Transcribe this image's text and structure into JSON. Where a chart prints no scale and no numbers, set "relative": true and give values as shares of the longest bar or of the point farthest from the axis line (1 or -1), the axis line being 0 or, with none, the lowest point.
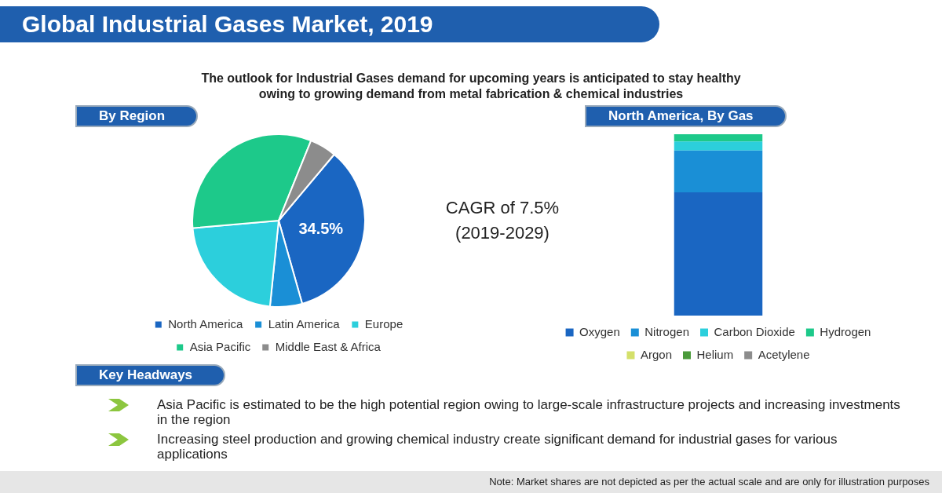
{
  "chart_data": [
    {
      "type": "pie",
      "title": "Global Industrial Gases Market, 2019",
      "subtitle": "The outlook for Industrial Gases demand for upcoming years is anticipated to stay healthy owing to growing demand from metal fabrication & chemical industries",
      "categories": [
        "North America",
        "Latin America",
        "Europe",
        "Asia Pacific",
        "Middle East & Africa"
      ],
      "values": [
        34.5,
        6,
        22,
        32.5,
        5
      ],
      "colors": [
        "#1a66c2",
        "#1a8fd6",
        "#2ccfdc",
        "#1dc98a",
        "#8c8c8c"
      ],
      "value_labels": [
        "34.5%",
        null,
        null,
        null,
        null
      ],
      "legend": "bottom",
      "annotations": [
        "By Region",
        "CAGR of 7.5%",
        "(2019-2029)",
        "Key Headways",
        "Asia Pacific is estimated to be the high potential region owing to large-scale infrastructure projects and increasing investments in the region",
        "Increasing steel production and growing chemical industry create significant demand for industrial gases for various applications",
        "Note: Market shares are not depicted as per the actual scale and are only for illustration purposes"
      ]
    },
    {
      "type": "bar",
      "title": "North America, By Gas",
      "categories": [
        null
      ],
      "stacked": true,
      "relative": true,
      "legend": "bottom",
      "series": [
        {
          "name": "Oxygen",
          "color": "#1a66c2",
          "values": [
            0.68
          ]
        },
        {
          "name": "Nitrogen",
          "color": "#1a8fd6",
          "values": [
            0.23
          ]
        },
        {
          "name": "Carbon Dioxide",
          "color": "#2ccfdc",
          "values": [
            0.05
          ]
        },
        {
          "name": "Hydrogen",
          "color": "#1dc98a",
          "values": [
            0.04
          ]
        },
        {
          "name": "Argon",
          "color": "#d4e06a",
          "values": [
            null
          ]
        },
        {
          "name": "Helium",
          "color": "#4a9a3a",
          "values": [
            null
          ]
        },
        {
          "name": "Acetylene",
          "color": "#8c8c8c",
          "values": [
            null
          ]
        }
      ]
    }
  ]
}
